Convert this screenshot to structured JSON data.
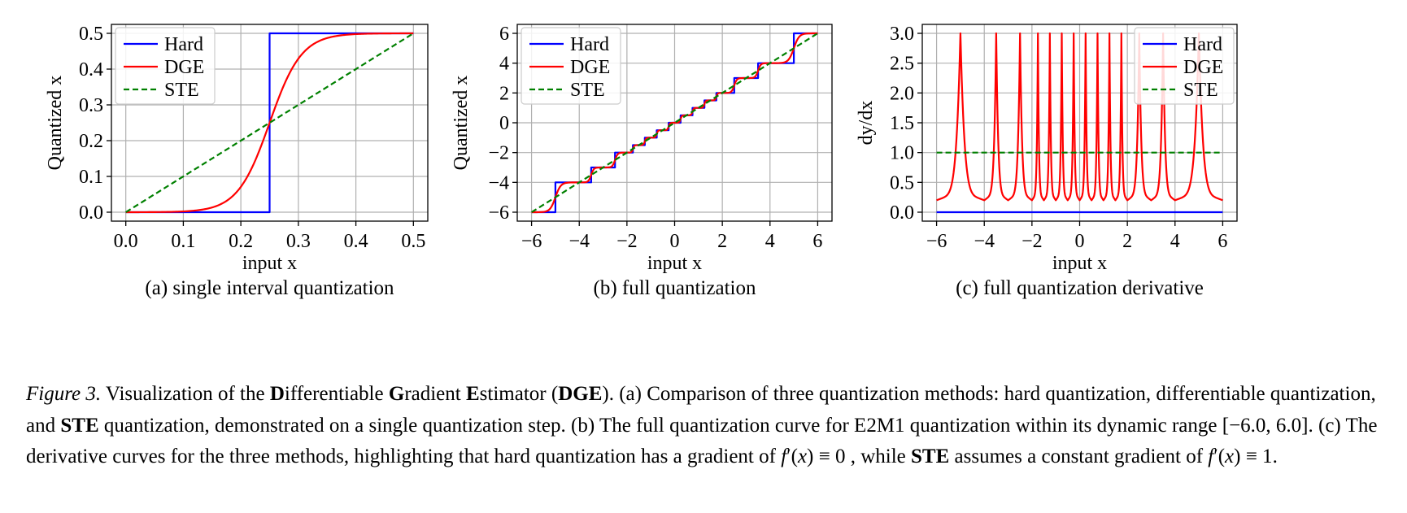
{
  "colors": {
    "hard": "#0000ff",
    "dge": "#ff0000",
    "ste": "#008000",
    "grid": "#b0b0b0",
    "axes": "#000000"
  },
  "chart_data": [
    {
      "type": "line",
      "sublabel": "(a) single interval quantization",
      "xlabel": "input x",
      "ylabel": "Quantized x",
      "xlim": [
        -0.025,
        0.525
      ],
      "ylim": [
        -0.025,
        0.525
      ],
      "xticks": [
        0.0,
        0.1,
        0.2,
        0.3,
        0.4,
        0.5
      ],
      "xtick_labels": [
        "0.0",
        "0.1",
        "0.2",
        "0.3",
        "0.4",
        "0.5"
      ],
      "yticks": [
        0.0,
        0.1,
        0.2,
        0.3,
        0.4,
        0.5
      ],
      "ytick_labels": [
        "0.0",
        "0.1",
        "0.2",
        "0.3",
        "0.4",
        "0.5"
      ],
      "grid": true,
      "legend": "upper-left",
      "series": [
        {
          "name": "Hard",
          "style": "solid",
          "color": "#0000ff",
          "x": [
            0.0,
            0.25,
            0.25,
            0.5
          ],
          "y": [
            0.0,
            0.0,
            0.5,
            0.5
          ]
        },
        {
          "name": "DGE",
          "style": "solid",
          "color": "#ff0000",
          "x": [
            0.0,
            0.05,
            0.1,
            0.15,
            0.2,
            0.225,
            0.24,
            0.245,
            0.25,
            0.255,
            0.26,
            0.275,
            0.3,
            0.35,
            0.4,
            0.45,
            0.5
          ],
          "y": [
            0.0,
            0.01,
            0.025,
            0.045,
            0.075,
            0.1,
            0.135,
            0.17,
            0.25,
            0.33,
            0.365,
            0.4,
            0.425,
            0.455,
            0.475,
            0.49,
            0.5
          ]
        },
        {
          "name": "STE",
          "style": "dashed",
          "color": "#008000",
          "x": [
            0.0,
            0.5
          ],
          "y": [
            0.0,
            0.5
          ]
        }
      ]
    },
    {
      "type": "line",
      "sublabel": "(b) full quantization",
      "xlabel": "input x",
      "ylabel": "Quantized x",
      "xlim": [
        -6.6,
        6.6
      ],
      "ylim": [
        -6.6,
        6.6
      ],
      "xticks": [
        -6,
        -4,
        -2,
        0,
        2,
        4,
        6
      ],
      "xtick_labels": [
        "−6",
        "−4",
        "−2",
        "0",
        "2",
        "4",
        "6"
      ],
      "yticks": [
        -6,
        -4,
        -2,
        0,
        2,
        4,
        6
      ],
      "ytick_labels": [
        "−6",
        "−4",
        "−2",
        "0",
        "2",
        "4",
        "6"
      ],
      "grid": true,
      "legend": "upper-left",
      "quant_levels": [
        -6,
        -4,
        -3,
        -2,
        -1.5,
        -1,
        -0.5,
        0,
        0.5,
        1,
        1.5,
        2,
        3,
        4,
        6
      ],
      "series": [
        {
          "name": "Hard",
          "style": "solid",
          "color": "#0000ff",
          "kind": "hard-quant"
        },
        {
          "name": "DGE",
          "style": "solid",
          "color": "#ff0000",
          "kind": "dge-quant"
        },
        {
          "name": "STE",
          "style": "dashed",
          "color": "#008000",
          "x": [
            -6,
            6
          ],
          "y": [
            -6,
            6
          ]
        }
      ]
    },
    {
      "type": "line",
      "sublabel": "(c) full quantization derivative",
      "xlabel": "input x",
      "ylabel": "dy/dx",
      "xlim": [
        -6.6,
        6.6
      ],
      "ylim": [
        -0.15,
        3.15
      ],
      "xticks": [
        -6,
        -4,
        -2,
        0,
        2,
        4,
        6
      ],
      "xtick_labels": [
        "−6",
        "−4",
        "−2",
        "0",
        "2",
        "4",
        "6"
      ],
      "yticks": [
        0.0,
        0.5,
        1.0,
        1.5,
        2.0,
        2.5,
        3.0
      ],
      "ytick_labels": [
        "0.0",
        "0.5",
        "1.0",
        "1.5",
        "2.0",
        "2.5",
        "3.0"
      ],
      "grid": true,
      "legend": "upper-right",
      "quant_levels": [
        -6,
        -4,
        -3,
        -2,
        -1.5,
        -1,
        -0.5,
        0,
        0.5,
        1,
        1.5,
        2,
        3,
        4,
        6
      ],
      "derivative_min": 0.2,
      "derivative_max": 3.0,
      "series": [
        {
          "name": "Hard",
          "style": "solid",
          "color": "#0000ff",
          "x": [
            -6,
            6
          ],
          "y": [
            0,
            0
          ]
        },
        {
          "name": "DGE",
          "style": "solid",
          "color": "#ff0000",
          "kind": "dge-derivative"
        },
        {
          "name": "STE",
          "style": "dashed",
          "color": "#008000",
          "x": [
            -6,
            6
          ],
          "y": [
            1,
            1
          ]
        }
      ]
    }
  ],
  "caption": {
    "figure_label": "Figure 3.",
    "t1": " Visualization of the ",
    "b1": "D",
    "t2": "ifferentiable ",
    "b2": "G",
    "t3": "radient ",
    "b3": "E",
    "t4": "stimator (",
    "b4": "DGE",
    "t5": "). (a) Comparison of three quantization methods: hard quantization, differentiable quantization, and ",
    "b5": "STE",
    "t6": " quantization, demonstrated on a single quantization step. (b) The full quantization curve for E2M1 quantization within its dynamic range ",
    "m1": "[−6.0, 6.0]",
    "t7": ". (c) The derivative curves for the three methods, highlighting that hard quantization has a gradient of ",
    "m2_f": "f",
    "m2_rest": "′(",
    "m2_x": "x",
    "m2_tail": ") ≡ 0",
    "t8": " , while ",
    "b6": "STE",
    "t9": " assumes a constant gradient of ",
    "m3_f": "f",
    "m3_rest": "′(",
    "m3_x": "x",
    "m3_tail": ") ≡ 1",
    "t10": "."
  }
}
